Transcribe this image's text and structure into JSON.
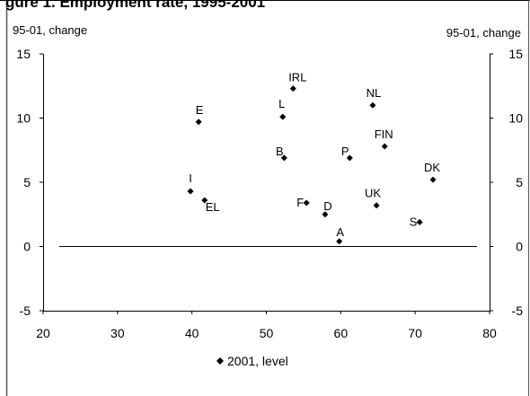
{
  "page": {
    "clipped_heading": "gure 1. Employment rate, 1995-2001"
  },
  "chart_data": {
    "type": "scatter",
    "title": "",
    "xlabel": "",
    "ylabel_left": "95-01, change",
    "ylabel_right": "95-01, change",
    "xlim": [
      20,
      80
    ],
    "ylim": [
      -5,
      15
    ],
    "xticks": [
      "20",
      "30",
      "40",
      "50",
      "60",
      "70",
      "80"
    ],
    "yticks": [
      "-5",
      "0",
      "5",
      "10",
      "15"
    ],
    "grid": false,
    "zero_line": true,
    "legend_position": "bottom-left",
    "marker_color": "#000000",
    "series": [
      {
        "name": "2001, level",
        "points": [
          {
            "label": "IRL",
            "x": 53.6,
            "y": 12.3
          },
          {
            "label": "NL",
            "x": 64.3,
            "y": 11.0
          },
          {
            "label": "E",
            "x": 40.9,
            "y": 9.7
          },
          {
            "label": "L",
            "x": 52.2,
            "y": 10.1
          },
          {
            "label": "FIN",
            "x": 65.9,
            "y": 7.8
          },
          {
            "label": "B",
            "x": 52.4,
            "y": 6.9
          },
          {
            "label": "P",
            "x": 61.2,
            "y": 6.9
          },
          {
            "label": "DK",
            "x": 72.4,
            "y": 5.2
          },
          {
            "label": "I",
            "x": 39.8,
            "y": 4.3
          },
          {
            "label": "EL",
            "x": 41.7,
            "y": 3.6
          },
          {
            "label": "F",
            "x": 55.4,
            "y": 3.4
          },
          {
            "label": "UK",
            "x": 64.8,
            "y": 3.2
          },
          {
            "label": "D",
            "x": 57.9,
            "y": 2.5
          },
          {
            "label": "S",
            "x": 70.6,
            "y": 1.9
          },
          {
            "label": "A",
            "x": 59.8,
            "y": 0.4
          }
        ]
      }
    ]
  }
}
